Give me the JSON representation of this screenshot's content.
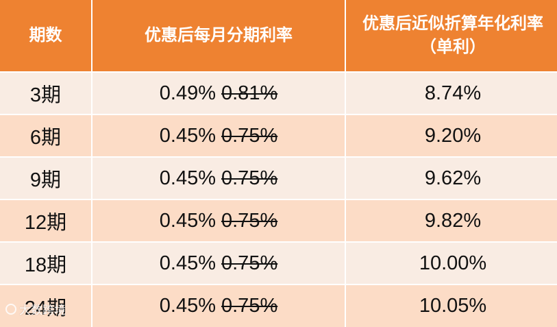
{
  "table": {
    "headers": [
      "期数",
      "优惠后每月分期利率",
      "优惠后近似折算年化利率（单利）"
    ],
    "rows": [
      {
        "term": "3期",
        "new_rate": "0.49%",
        "old_rate": "0.81%",
        "annual": "8.74%"
      },
      {
        "term": "6期",
        "new_rate": "0.45%",
        "old_rate": "0.75%",
        "annual": "9.20%"
      },
      {
        "term": "9期",
        "new_rate": "0.45%",
        "old_rate": "0.75%",
        "annual": "9.62%"
      },
      {
        "term": "12期",
        "new_rate": "0.45%",
        "old_rate": "0.75%",
        "annual": "9.82%"
      },
      {
        "term": "18期",
        "new_rate": "0.45%",
        "old_rate": "0.75%",
        "annual": "10.00%"
      },
      {
        "term": "24期",
        "new_rate": "0.45%",
        "old_rate": "0.75%",
        "annual": "10.05%"
      }
    ]
  },
  "colors": {
    "header": "#ee8231",
    "row_light": "#f9ece3",
    "row_dark": "#fcdcc6"
  },
  "watermark": {
    "text": "大数跨境",
    "icon": "brand-logo-icon"
  }
}
